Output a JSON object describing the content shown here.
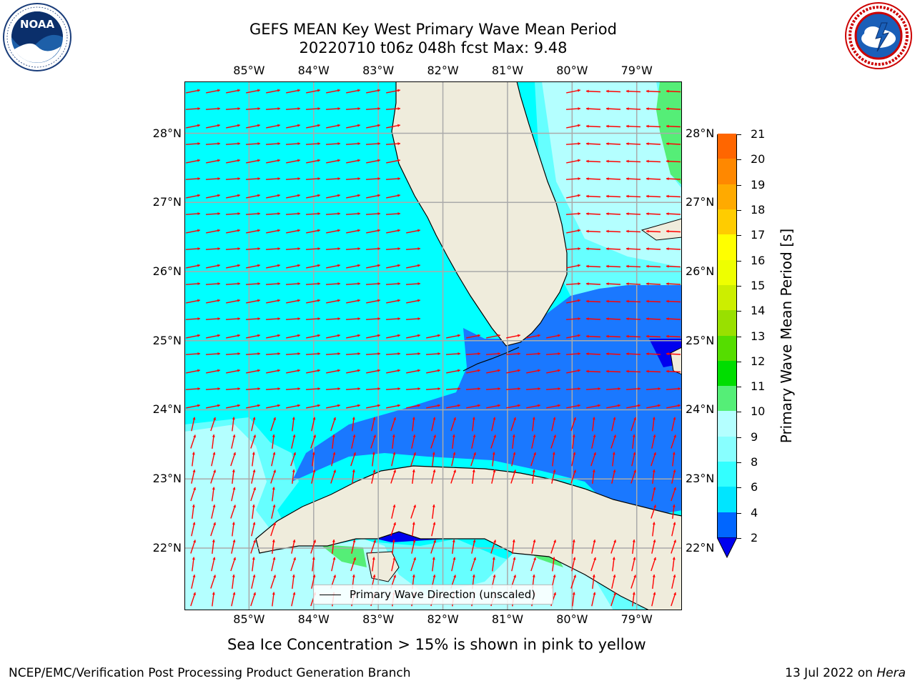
{
  "title": {
    "line1": "GEFS MEAN Key West Primary Wave Mean Period",
    "line2": "20220710 t06z 048h fcst   Max: 9.48"
  },
  "logos": {
    "left": {
      "text": "NOAA",
      "ring_text": "NATIONAL OCEANIC AND ATMOSPHERIC ADMINISTRATION · U.S. DEPARTMENT OF COMMERCE"
    },
    "right": {
      "ring_text": "NATIONAL WEATHER SERVICE"
    }
  },
  "map": {
    "lon_labels": [
      "85°W",
      "84°W",
      "83°W",
      "82°W",
      "81°W",
      "80°W",
      "79°W"
    ],
    "lat_labels": [
      "28°N",
      "27°N",
      "26°N",
      "25°N",
      "24°N",
      "23°N",
      "22°N"
    ],
    "lon_range": [
      -86.0,
      -78.3
    ],
    "lat_range": [
      21.1,
      28.75
    ],
    "legend_label": "Primary Wave Direction (unscaled)",
    "land_color": "#efecdc",
    "arrow_color": "#ff0000",
    "grid": true
  },
  "colorbar": {
    "title": "Primary Wave Mean Period [s]",
    "ticks": [
      "2",
      "4",
      "6",
      "8",
      "9",
      "10",
      "11",
      "12",
      "13",
      "14",
      "15",
      "16",
      "17",
      "18",
      "19",
      "20",
      "21"
    ],
    "colors": [
      "#0066ff",
      "#00e5ff",
      "#33ffff",
      "#88ffff",
      "#b4ffff",
      "#55ee77",
      "#00dd00",
      "#55dd00",
      "#99e000",
      "#ccee00",
      "#eeff00",
      "#ffff00",
      "#ffcc00",
      "#ffaa00",
      "#ff8800",
      "#ff6600",
      "#ff3300",
      "#ff0000"
    ],
    "extend_color": "#0000ee"
  },
  "caption": "Sea Ice Concentration > 15% is shown in pink to yellow",
  "footer": {
    "left": "NCEP/EMC/Verification Post Processing Product Generation Branch",
    "right_prefix": "13 Jul 2022 on",
    "right_host": "Hera"
  }
}
